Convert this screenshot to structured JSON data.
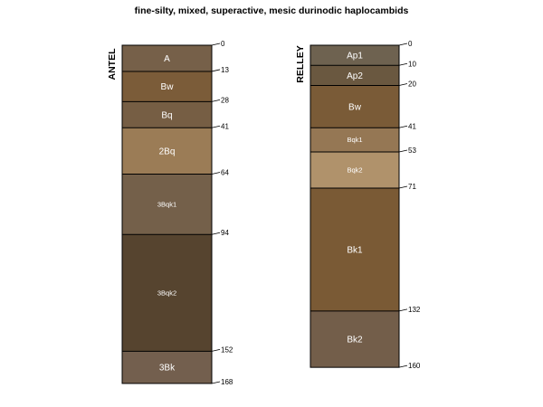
{
  "chart_data": {
    "type": "soil-profile-sketch",
    "title": "fine-silty, mixed, superactive, mesic durinodic haplocambids",
    "depth_unit": "cm",
    "profiles": [
      {
        "name": "ANTEL",
        "horizons": [
          {
            "name": "A",
            "top": 0,
            "bottom": 13,
            "color": "#766049"
          },
          {
            "name": "Bw",
            "top": 13,
            "bottom": 28,
            "color": "#7b5c39"
          },
          {
            "name": "Bq",
            "top": 28,
            "bottom": 41,
            "color": "#765e44"
          },
          {
            "name": "2Bq",
            "top": 41,
            "bottom": 64,
            "color": "#9b7c56"
          },
          {
            "name": "3Bqk1",
            "top": 64,
            "bottom": 94,
            "color": "#74604a"
          },
          {
            "name": "3Bqk2",
            "top": 94,
            "bottom": 152,
            "color": "#56442f"
          },
          {
            "name": "3Bk",
            "top": 152,
            "bottom": 168,
            "color": "#735f4e"
          }
        ]
      },
      {
        "name": "RELLEY",
        "horizons": [
          {
            "name": "Ap1",
            "top": 0,
            "bottom": 10,
            "color": "#6e6250"
          },
          {
            "name": "Ap2",
            "top": 10,
            "bottom": 20,
            "color": "#6a5840"
          },
          {
            "name": "Bw",
            "top": 20,
            "bottom": 41,
            "color": "#7a5b37"
          },
          {
            "name": "Bqk1",
            "top": 41,
            "bottom": 53,
            "color": "#957754"
          },
          {
            "name": "Bqk2",
            "top": 53,
            "bottom": 71,
            "color": "#b0926b"
          },
          {
            "name": "Bk1",
            "top": 71,
            "bottom": 132,
            "color": "#7a5a35"
          },
          {
            "name": "Bk2",
            "top": 132,
            "bottom": 160,
            "color": "#735e4a"
          }
        ]
      }
    ]
  }
}
